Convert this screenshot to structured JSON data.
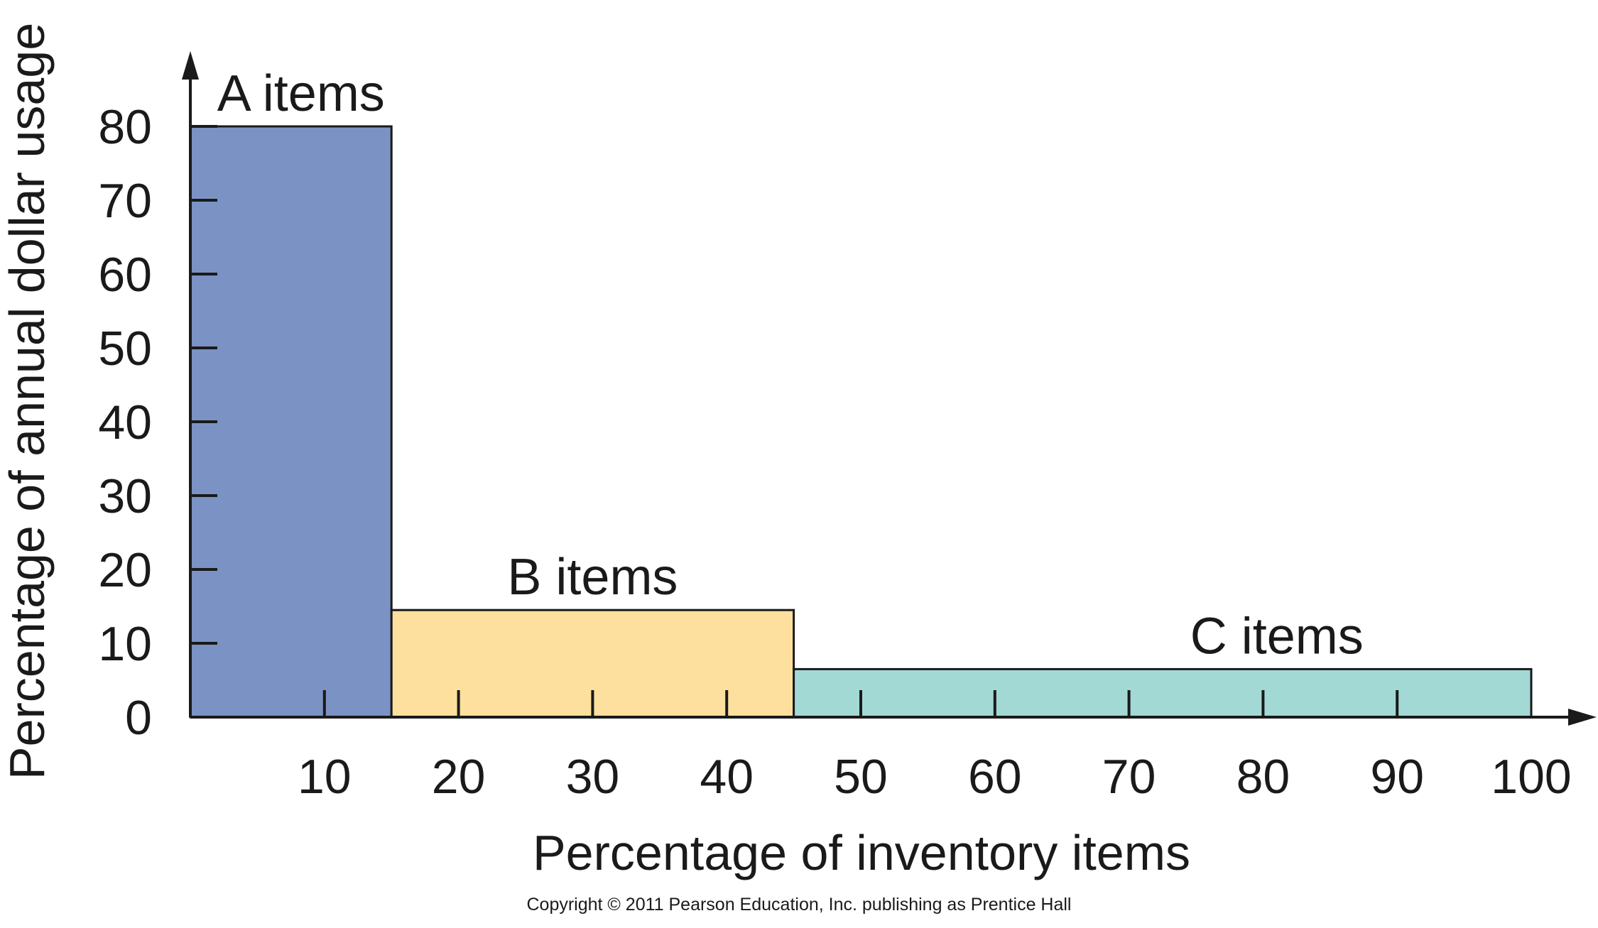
{
  "chart_data": {
    "type": "bar",
    "xlabel": "Percentage of inventory items",
    "ylabel": "Percentage of annual dollar usage",
    "xlim": [
      0,
      100
    ],
    "ylim": [
      0,
      80
    ],
    "x_ticks": [
      10,
      20,
      30,
      40,
      50,
      60,
      70,
      80,
      90,
      100
    ],
    "y_ticks": [
      0,
      10,
      20,
      30,
      40,
      50,
      60,
      70,
      80
    ],
    "grid": false,
    "legend": "none",
    "bars": [
      {
        "label": "A items",
        "x_start": 0,
        "x_end": 15,
        "value": 80,
        "color": "#7b93c4"
      },
      {
        "label": "B items",
        "x_start": 15,
        "x_end": 45,
        "value": 14.5,
        "color": "#fde09d"
      },
      {
        "label": "C items",
        "x_start": 45,
        "x_end": 100,
        "value": 6.5,
        "color": "#a3d9d5"
      }
    ]
  },
  "footer": {
    "copyright": "Copyright © 2011 Pearson Education, Inc. publishing as Prentice Hall"
  }
}
